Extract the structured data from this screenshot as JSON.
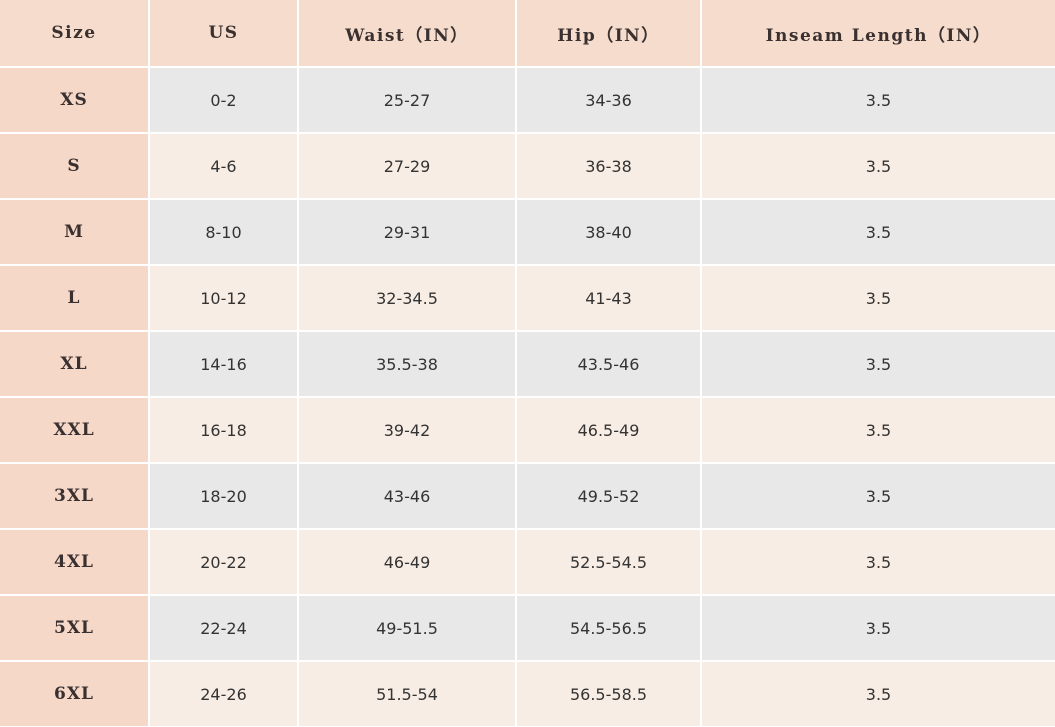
{
  "table": {
    "header": [
      "Size",
      "US",
      "Waist（IN）",
      "Hip（IN）",
      "Inseam Length（IN）"
    ],
    "rows": [
      [
        "XS",
        "0-2",
        "25-27",
        "34-36",
        "3.5"
      ],
      [
        "S",
        "4-6",
        "27-29",
        "36-38",
        "3.5"
      ],
      [
        "M",
        "8-10",
        "29-31",
        "38-40",
        "3.5"
      ],
      [
        "L",
        "10-12",
        "32-34.5",
        "41-43",
        "3.5"
      ],
      [
        "XL",
        "14-16",
        "35.5-38",
        "43.5-46",
        "3.5"
      ],
      [
        "XXL",
        "16-18",
        "39-42",
        "46.5-49",
        "3.5"
      ],
      [
        "3XL",
        "18-20",
        "43-46",
        "49.5-52",
        "3.5"
      ],
      [
        "4XL",
        "20-22",
        "46-49",
        "52.5-54.5",
        "3.5"
      ],
      [
        "5XL",
        "22-24",
        "49-51.5",
        "54.5-56.5",
        "3.5"
      ],
      [
        "6XL",
        "24-26",
        "51.5-54",
        "56.5-58.5",
        "3.5"
      ]
    ]
  }
}
